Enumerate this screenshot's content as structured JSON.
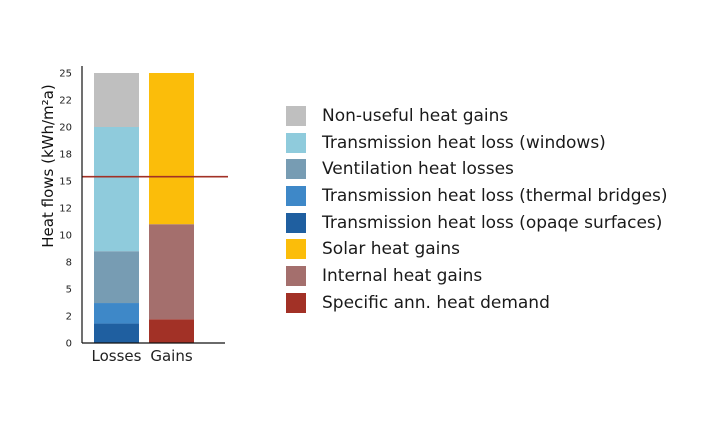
{
  "chart_data": {
    "type": "bar",
    "stacked": true,
    "ylabel": "Heat flows (kWh/m²a)",
    "ylim": [
      0,
      25
    ],
    "yticks": [
      {
        "value": 0,
        "label": "0"
      },
      {
        "value": 2.5,
        "label": "2"
      },
      {
        "value": 5,
        "label": "5"
      },
      {
        "value": 7.5,
        "label": "8"
      },
      {
        "value": 10,
        "label": "10"
      },
      {
        "value": 12.5,
        "label": "12"
      },
      {
        "value": 15,
        "label": "15"
      },
      {
        "value": 17.5,
        "label": "18"
      },
      {
        "value": 20,
        "label": "20"
      },
      {
        "value": 22.5,
        "label": "22"
      },
      {
        "value": 25,
        "label": "25"
      }
    ],
    "categories": [
      "Losses",
      "Gains"
    ],
    "series": [
      {
        "name": "Transmission heat loss (opaqe surfaces)",
        "color": "#1f5fa0",
        "values": [
          1.8,
          0
        ]
      },
      {
        "name": "Transmission heat loss (thermal bridges)",
        "color": "#3e88c8",
        "values": [
          1.9,
          0
        ]
      },
      {
        "name": "Ventilation heat losses",
        "color": "#779cb3",
        "values": [
          4.8,
          0
        ]
      },
      {
        "name": "Transmission heat loss (windows)",
        "color": "#8fcbdc",
        "values": [
          11.5,
          0
        ]
      },
      {
        "name": "Non-useful heat gains",
        "color": "#bfbfbf",
        "values": [
          5.0,
          0
        ]
      },
      {
        "name": "Specific ann. heat demand",
        "color": "#a23126",
        "values": [
          0,
          2.2
        ]
      },
      {
        "name": "Internal heat gains",
        "color": "#a46f6d",
        "values": [
          0,
          8.8
        ]
      },
      {
        "name": "Solar heat gains",
        "color": "#fbbd0a",
        "values": [
          0,
          14.0
        ]
      }
    ],
    "reference_line": {
      "value": 15.4,
      "color": "#a23126"
    },
    "legend": {
      "placement": "right",
      "order": [
        "Non-useful heat gains",
        "Transmission heat loss (windows)",
        "Ventilation heat losses",
        "Transmission heat loss (thermal bridges)",
        "Transmission heat loss (opaqe surfaces)",
        "Solar heat gains",
        "Internal heat gains",
        "Specific ann. heat demand"
      ]
    },
    "grid": false
  }
}
